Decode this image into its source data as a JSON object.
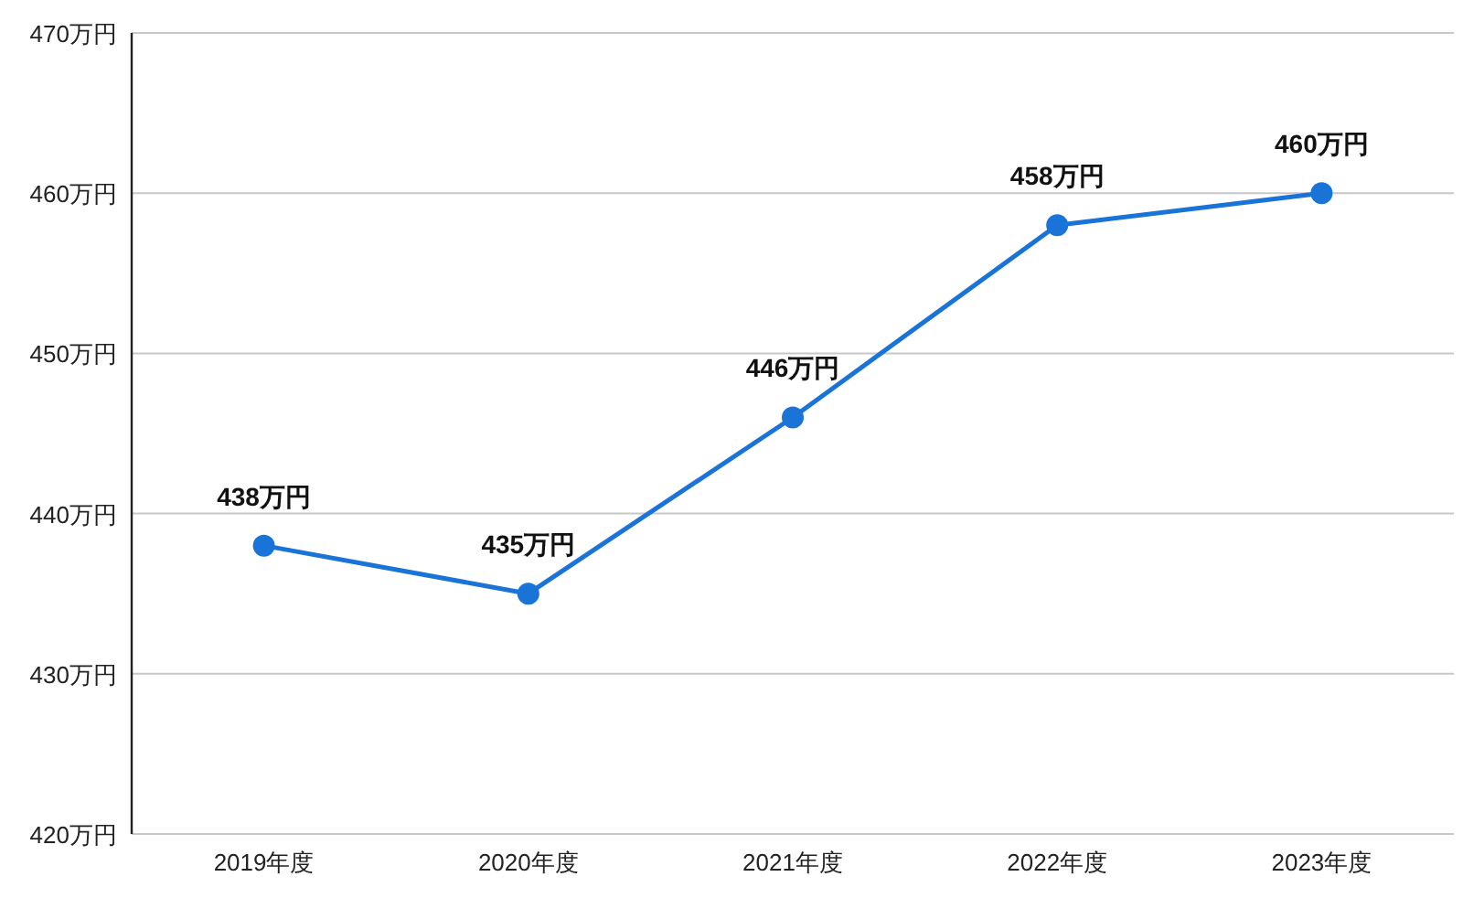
{
  "chart_data": {
    "type": "line",
    "categories": [
      "2019年度",
      "2020年度",
      "2021年度",
      "2022年度",
      "2023年度"
    ],
    "series": [
      {
        "color": "#1a73d6",
        "values": [
          438,
          435,
          446,
          458,
          460
        ],
        "value_labels": [
          "438万円",
          "435万円",
          "446万円",
          "458万円",
          "460万円"
        ]
      }
    ],
    "ylim": [
      420,
      470
    ],
    "yticks": [
      {
        "value": 420,
        "label": "420万円"
      },
      {
        "value": 430,
        "label": "430万円"
      },
      {
        "value": 440,
        "label": "440万円"
      },
      {
        "value": 450,
        "label": "450万円"
      },
      {
        "value": 460,
        "label": "460万円"
      },
      {
        "value": 470,
        "label": "470万円"
      }
    ],
    "grid": "y",
    "marker": "circle",
    "line_style": "solid"
  }
}
